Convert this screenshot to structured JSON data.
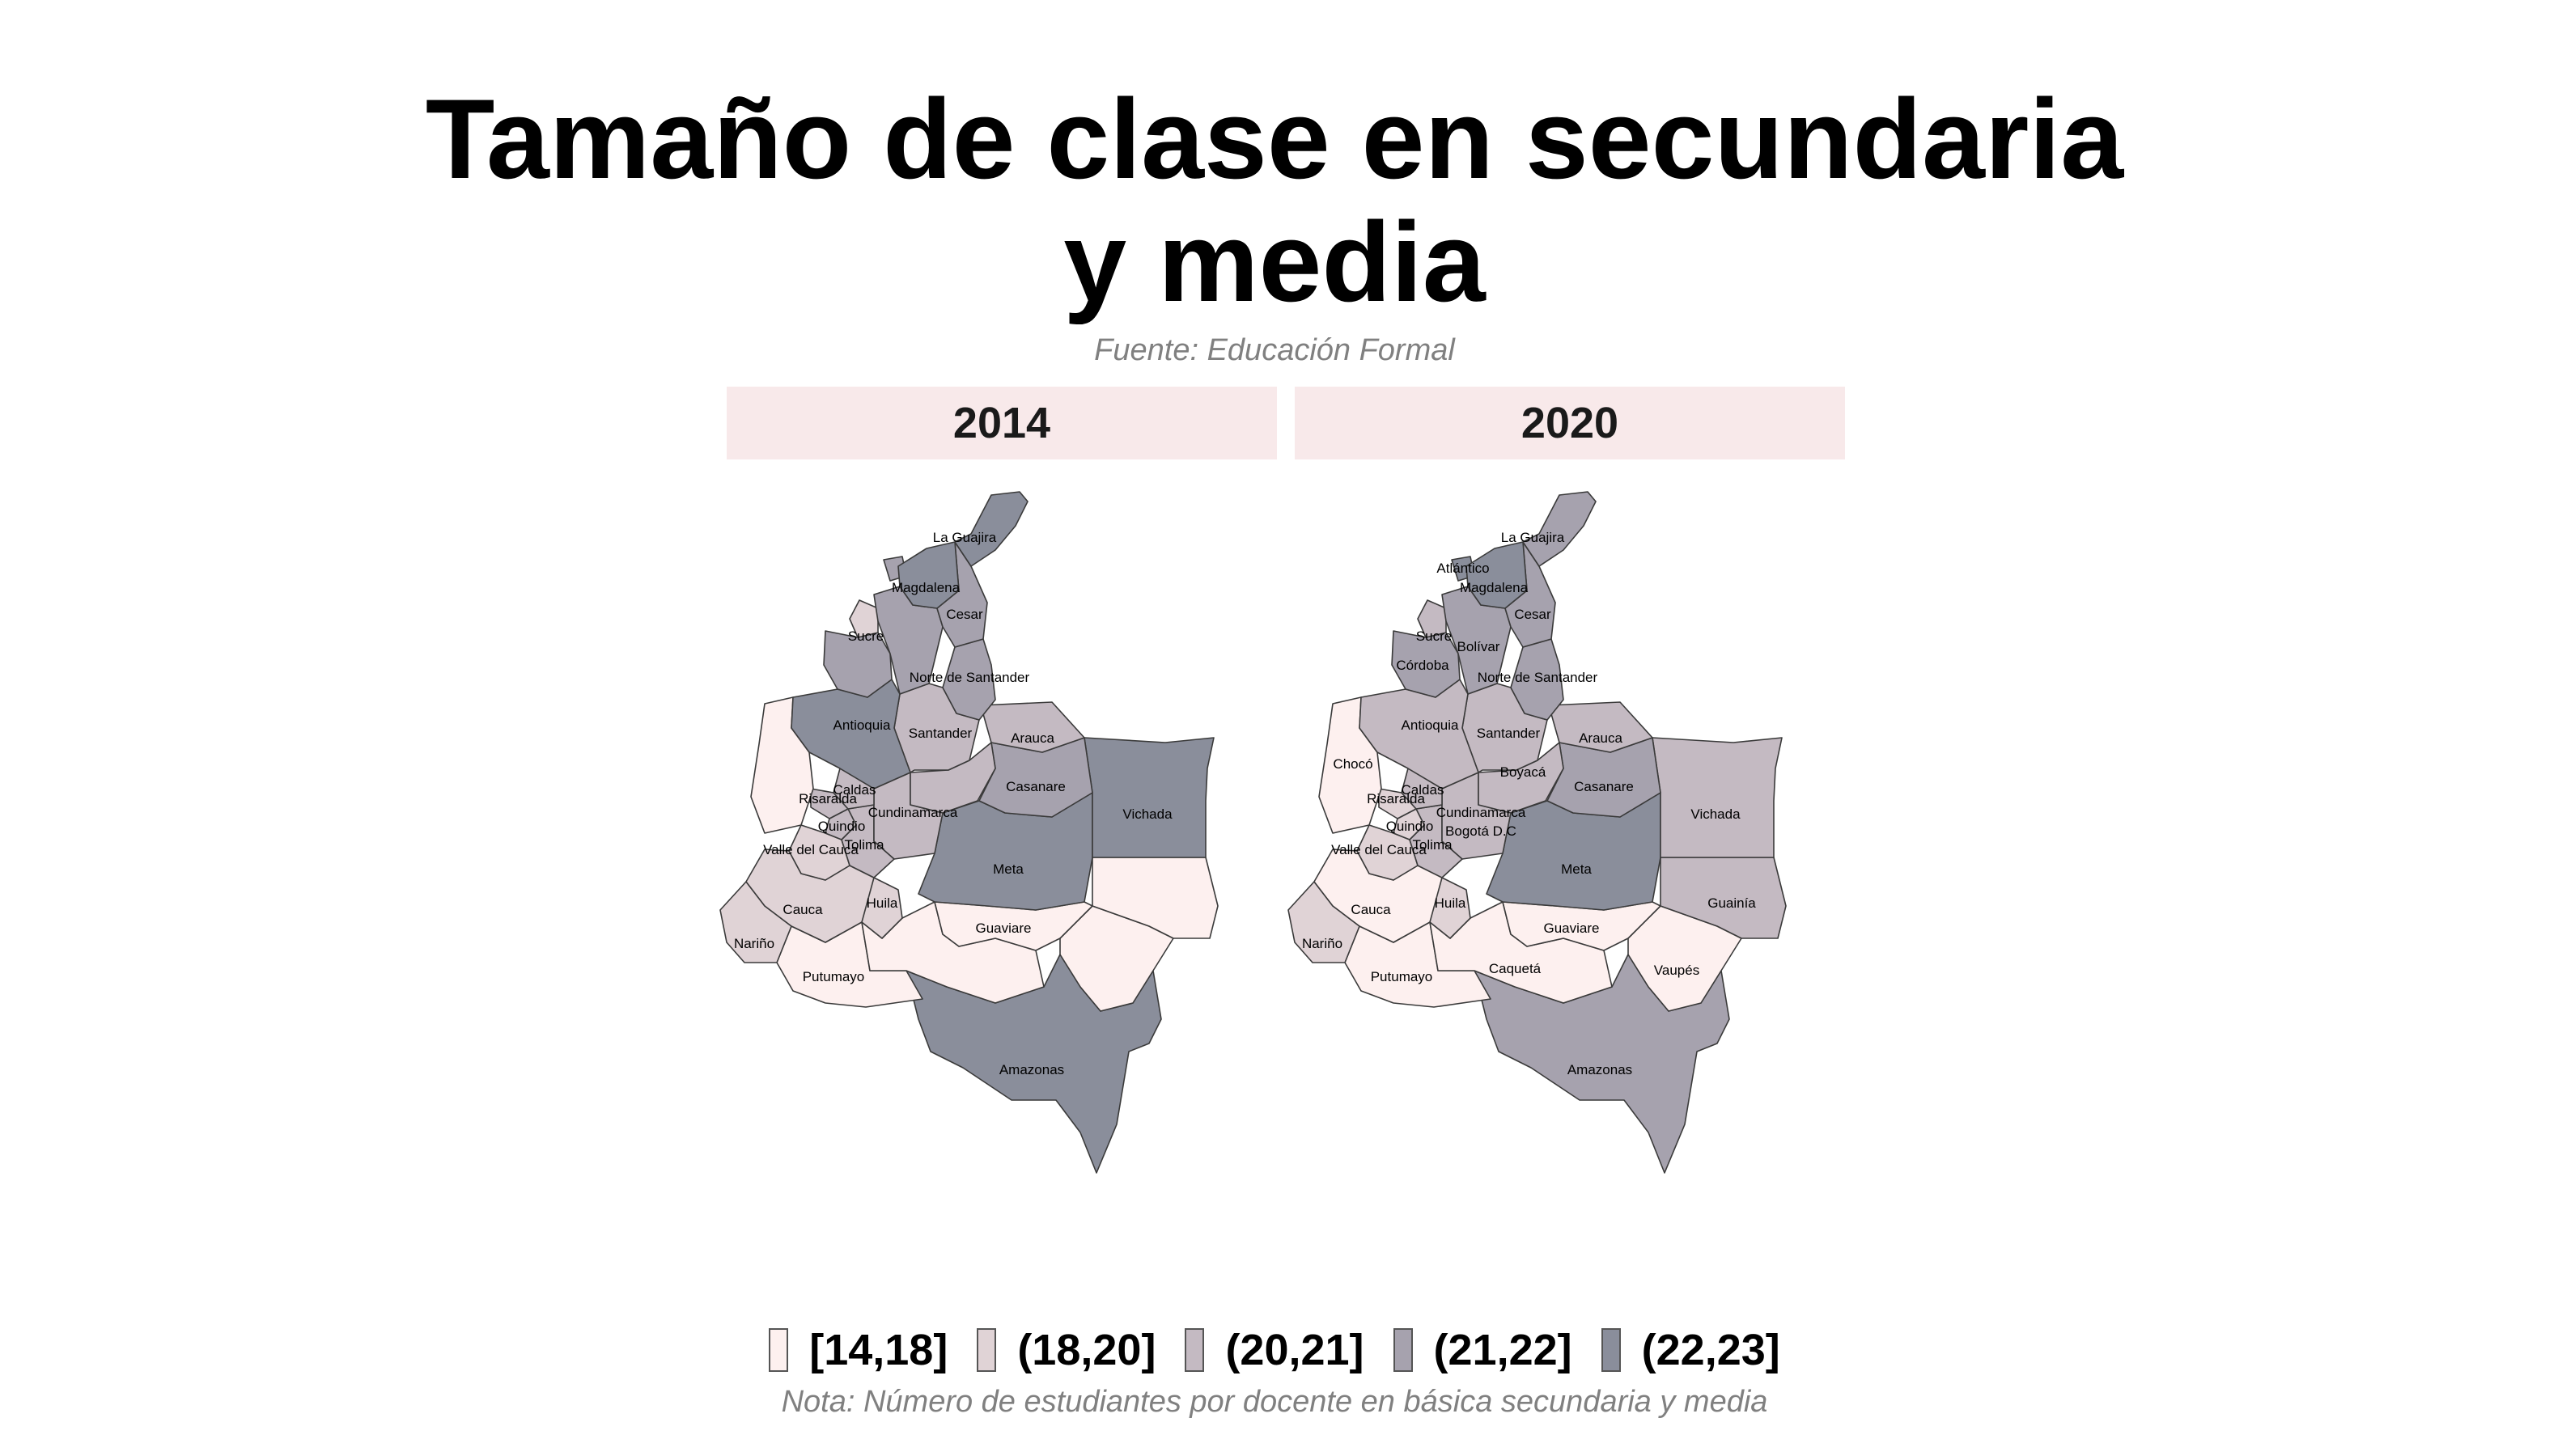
{
  "title": {
    "line1": "Tamaño de clase en secundaria",
    "line2": "y media"
  },
  "subtitle": "Fuente: Educación Formal",
  "note": "Nota: Número de estudiantes por docente en básica secundaria y media",
  "panels": [
    {
      "year": "2014",
      "regions": {
        "la_guajira": 4,
        "magdalena": 4,
        "cesar": 3,
        "atlantico": 3,
        "bolivar": 3,
        "sucre": 1,
        "cordoba": 3,
        "norte_de_santander": 3,
        "antioquia": 4,
        "santander": 2,
        "arauca": 2,
        "casanare": 3,
        "vichada": 4,
        "choco": 0,
        "caldas": 2,
        "risaralda": 2,
        "quindio": 2,
        "cundinamarca": 2,
        "boyaca": 2,
        "tolima": 2,
        "valle_del_cauca": 1,
        "meta": 4,
        "cauca": 1,
        "huila": 1,
        "narino": 1,
        "guaviare": 0,
        "putumayo": 0,
        "caqueta": 0,
        "guainia": 0,
        "vaupes": 0,
        "amazonas": 4
      },
      "labels": {
        "la_guajira": "La Guajira",
        "magdalena": "Magdalena",
        "cesar": "Cesar",
        "sucre": "Sucre",
        "norte_de_santander": "Norte de Santander",
        "antioquia": "Antioquia",
        "santander": "Santander",
        "arauca": "Arauca",
        "caldas": "Caldas",
        "risaralda": "Risaralda",
        "cundinamarca": "Cundinamarca",
        "casanare": "Casanare",
        "vichada": "Vichada",
        "quindio": "Quindio",
        "tolima": "Tolima",
        "valle_del_cauca": "Valle del Cauca",
        "meta": "Meta",
        "cauca": "Cauca",
        "huila": "Huila",
        "guaviare": "Guaviare",
        "narino": "Nariño",
        "putumayo": "Putumayo",
        "amazonas": "Amazonas"
      }
    },
    {
      "year": "2020",
      "regions": {
        "la_guajira": 3,
        "magdalena": 4,
        "cesar": 3,
        "atlantico": 4,
        "bolivar": 3,
        "sucre": 2,
        "cordoba": 3,
        "norte_de_santander": 3,
        "antioquia": 2,
        "santander": 2,
        "arauca": 2,
        "casanare": 3,
        "vichada": 2,
        "choco": 0,
        "caldas": 2,
        "risaralda": 1,
        "quindio": 1,
        "cundinamarca": 2,
        "boyaca": 2,
        "tolima": 2,
        "valle_del_cauca": 1,
        "bogota": 1,
        "meta": 4,
        "cauca": 0,
        "huila": 1,
        "narino": 1,
        "guaviare": 0,
        "putumayo": 0,
        "caqueta": 0,
        "guainia": 2,
        "vaupes": 0,
        "amazonas": 3
      },
      "labels": {
        "la_guajira": "La Guajira",
        "atlantico": "Atlántico",
        "magdalena": "Magdalena",
        "cesar": "Cesar",
        "sucre": "Sucre",
        "bolivar": "Bolívar",
        "cordoba": "Córdoba",
        "norte_de_santander": "Norte de Santander",
        "antioquia": "Antioquia",
        "santander": "Santander",
        "arauca": "Arauca",
        "choco": "Chocó",
        "boyaca": "Boyacá",
        "caldas": "Caldas",
        "casanare": "Casanare",
        "risaralda": "Risaralda",
        "cundinamarca": "Cundinamarca",
        "vichada": "Vichada",
        "quindio": "Quindio",
        "bogota": "Bogotá D.C",
        "tolima": "Tolima",
        "valle_del_cauca": "Valle del Cauca",
        "meta": "Meta",
        "guainia": "Guainía",
        "cauca": "Cauca",
        "huila": "Huila",
        "guaviare": "Guaviare",
        "narino": "Nariño",
        "caqueta": "Caquetá",
        "vaupes": "Vaupés",
        "putumayo": "Putumayo",
        "amazonas": "Amazonas"
      }
    }
  ],
  "legend": {
    "items": [
      {
        "label": "[14,18]",
        "color": "#fdf0ef"
      },
      {
        "label": "(18,20]",
        "color": "#e0d3d6"
      },
      {
        "label": "(20,21]",
        "color": "#c4bac2"
      },
      {
        "label": "(21,22]",
        "color": "#a6a2ae"
      },
      {
        "label": "(22,23]",
        "color": "#8a8e9b"
      }
    ]
  }
}
